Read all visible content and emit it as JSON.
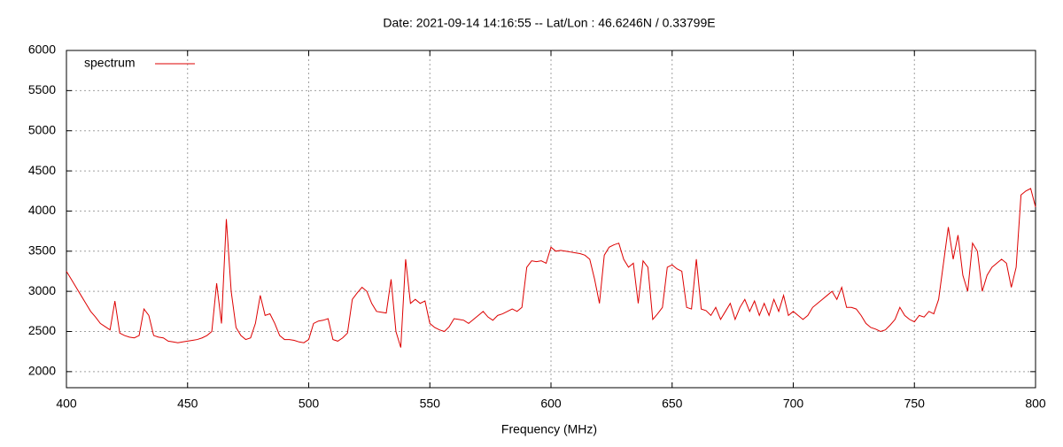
{
  "chart_data": {
    "type": "line",
    "title": "Date: 2021-09-14 14:16:55  --  Lat/Lon : 46.6246N / 0.33799E",
    "xlabel": "Frequency (MHz)",
    "x": [
      400,
      402,
      404,
      406,
      408,
      410,
      412,
      414,
      416,
      418,
      420,
      422,
      424,
      426,
      428,
      430,
      432,
      434,
      436,
      438,
      440,
      442,
      444,
      446,
      448,
      450,
      452,
      454,
      456,
      458,
      460,
      462,
      464,
      466,
      468,
      470,
      472,
      474,
      476,
      478,
      480,
      482,
      484,
      486,
      488,
      490,
      492,
      494,
      496,
      498,
      500,
      502,
      504,
      506,
      508,
      510,
      512,
      514,
      516,
      518,
      520,
      522,
      524,
      526,
      528,
      530,
      532,
      534,
      536,
      538,
      540,
      542,
      544,
      546,
      548,
      550,
      552,
      554,
      556,
      558,
      560,
      562,
      564,
      566,
      568,
      570,
      572,
      574,
      576,
      578,
      580,
      582,
      584,
      586,
      588,
      590,
      592,
      594,
      596,
      598,
      600,
      602,
      604,
      606,
      608,
      610,
      612,
      614,
      616,
      618,
      620,
      622,
      624,
      626,
      628,
      630,
      632,
      634,
      636,
      638,
      640,
      642,
      644,
      646,
      648,
      650,
      652,
      654,
      656,
      658,
      660,
      662,
      664,
      666,
      668,
      670,
      672,
      674,
      676,
      678,
      680,
      682,
      684,
      686,
      688,
      690,
      692,
      694,
      696,
      698,
      700,
      702,
      704,
      706,
      708,
      710,
      712,
      714,
      716,
      718,
      720,
      722,
      724,
      726,
      728,
      730,
      732,
      734,
      736,
      738,
      740,
      742,
      744,
      746,
      748,
      750,
      752,
      754,
      756,
      758,
      760,
      762,
      764,
      766,
      768,
      770,
      772,
      774,
      776,
      778,
      780,
      782,
      784,
      786,
      788,
      790,
      792,
      794,
      796,
      798,
      800
    ],
    "series": [
      {
        "name": "spectrum",
        "color": "#dd0000",
        "values": [
          3250,
          3150,
          3050,
          2950,
          2850,
          2750,
          2680,
          2600,
          2560,
          2520,
          2880,
          2480,
          2450,
          2430,
          2420,
          2450,
          2780,
          2700,
          2450,
          2430,
          2420,
          2380,
          2370,
          2360,
          2370,
          2380,
          2390,
          2400,
          2420,
          2450,
          2500,
          3100,
          2600,
          3900,
          3000,
          2550,
          2450,
          2400,
          2420,
          2600,
          2950,
          2700,
          2720,
          2600,
          2450,
          2400,
          2400,
          2390,
          2370,
          2360,
          2400,
          2600,
          2630,
          2640,
          2660,
          2400,
          2380,
          2420,
          2480,
          2900,
          2980,
          3050,
          3000,
          2850,
          2750,
          2740,
          2730,
          3150,
          2500,
          2300,
          3400,
          2850,
          2900,
          2850,
          2880,
          2600,
          2550,
          2520,
          2500,
          2560,
          2660,
          2650,
          2640,
          2600,
          2650,
          2700,
          2750,
          2680,
          2640,
          2700,
          2720,
          2750,
          2780,
          2750,
          2800,
          3300,
          3380,
          3370,
          3380,
          3350,
          3550,
          3500,
          3510,
          3500,
          3490,
          3480,
          3470,
          3450,
          3400,
          3150,
          2850,
          3450,
          3550,
          3580,
          3600,
          3400,
          3300,
          3350,
          2850,
          3380,
          3300,
          2650,
          2720,
          2800,
          3300,
          3330,
          3280,
          3250,
          2800,
          2780,
          3400,
          2780,
          2760,
          2700,
          2800,
          2650,
          2750,
          2850,
          2650,
          2800,
          2900,
          2750,
          2880,
          2700,
          2850,
          2700,
          2900,
          2750,
          2950,
          2700,
          2750,
          2700,
          2650,
          2700,
          2800,
          2850,
          2900,
          2950,
          3000,
          2900,
          3050,
          2800,
          2800,
          2780,
          2700,
          2600,
          2550,
          2530,
          2500,
          2520,
          2580,
          2650,
          2800,
          2700,
          2650,
          2620,
          2700,
          2680,
          2750,
          2720,
          2900,
          3350,
          3800,
          3400,
          3700,
          3200,
          3000,
          3600,
          3500,
          3000,
          3200,
          3300,
          3350,
          3400,
          3350,
          3050,
          3300,
          4200,
          4250,
          4280,
          4050
        ]
      }
    ],
    "xlim": [
      400,
      800
    ],
    "xticks": [
      400,
      450,
      500,
      550,
      600,
      650,
      700,
      750,
      800
    ],
    "ylim": [
      1800,
      6000
    ],
    "yticks": [
      2000,
      2500,
      3000,
      3500,
      4000,
      4500,
      5000,
      5500,
      6000
    ],
    "grid": true,
    "legend": "top-left"
  }
}
